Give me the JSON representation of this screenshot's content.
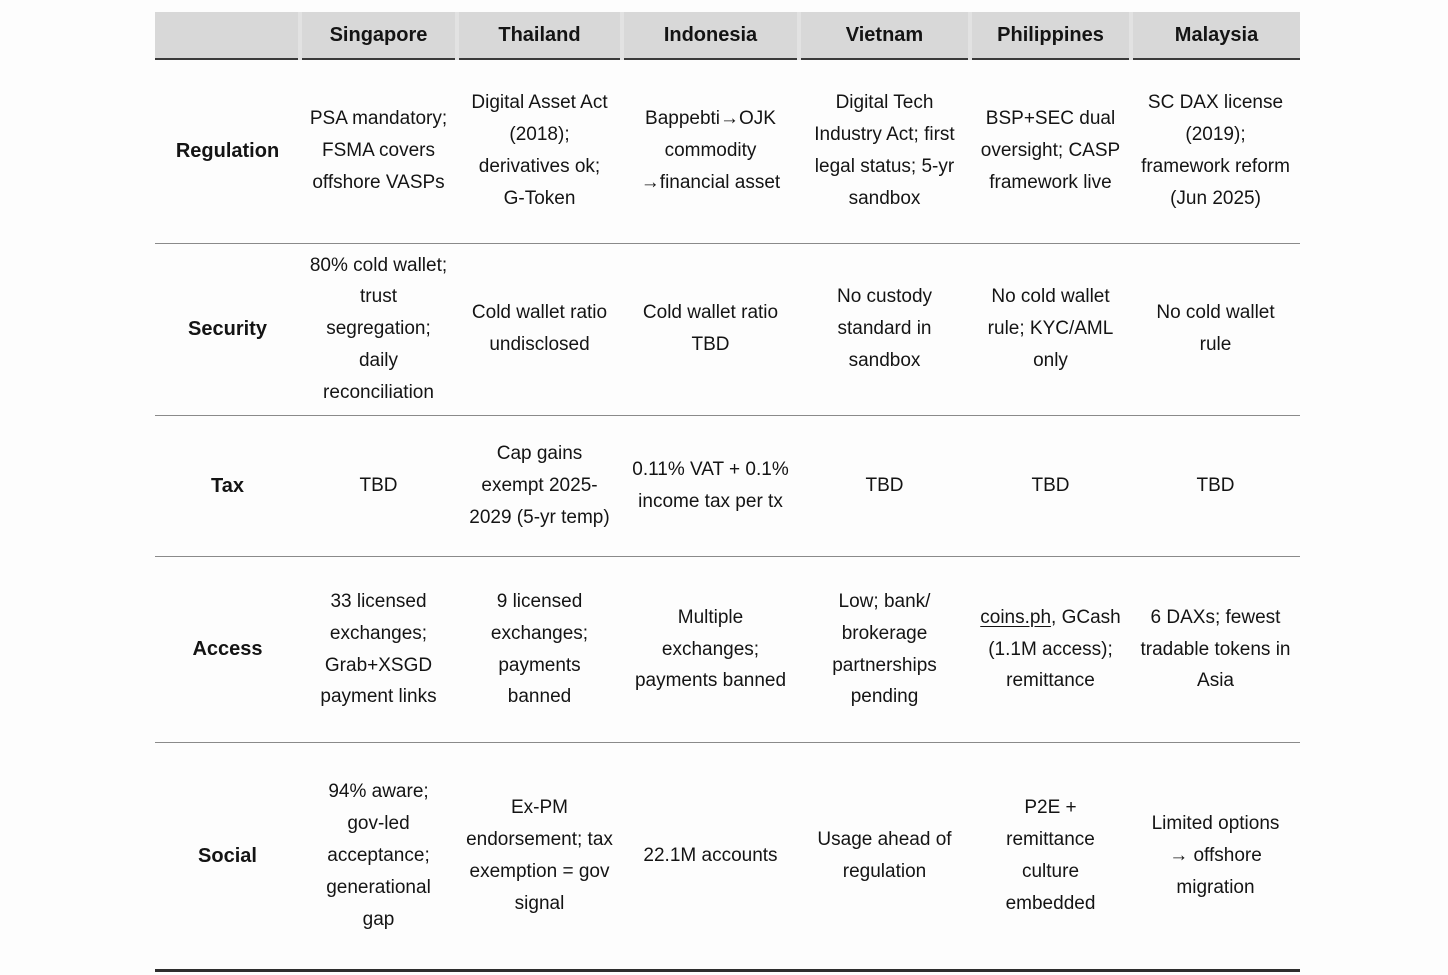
{
  "table": {
    "corner_label": "",
    "columns": [
      "Singapore",
      "Thailand",
      "Indonesia",
      "Vietnam",
      "Philippines",
      "Malaysia"
    ],
    "rows": [
      {
        "label": "Regulation",
        "cells": [
          "PSA mandatory; FSMA covers offshore VASPs",
          "Digital Asset Act (2018); derivatives ok; G-Token",
          "Bappebti→OJK commodity →financial asset",
          "Digital Tech Industry Act; first legal status; 5-yr sandbox",
          "BSP+SEC dual oversight; CASP framework live",
          "SC DAX license (2019); framework reform (Jun 2025)"
        ]
      },
      {
        "label": "Security",
        "cells": [
          "80% cold wallet; trust segregation; daily reconciliation",
          "Cold wallet ratio undisclosed",
          "Cold wallet ratio TBD",
          "No custody standard in sandbox",
          "No cold wallet rule; KYC/AML only",
          "No cold wallet rule"
        ]
      },
      {
        "label": "Tax",
        "cells": [
          "TBD",
          "Cap gains exempt 2025-2029 (5-yr temp)",
          "0.11% VAT + 0.1% income tax per tx",
          "TBD",
          "TBD",
          "TBD"
        ]
      },
      {
        "label": "Access",
        "cells": [
          "33 licensed exchanges; Grab+XSGD payment links",
          "9 licensed exchanges; payments banned",
          "Multiple exchanges; payments banned",
          "Low; bank/ brokerage partnerships pending",
          {
            "text": "coins.ph, GCash (1.1M access); remittance",
            "underline": "coins.ph",
            "link_name": "coins-ph-link"
          },
          "6 DAXs; fewest tradable tokens in Asia"
        ]
      },
      {
        "label": "Social",
        "cells": [
          "94% aware; gov-led acceptance; generational gap",
          "Ex-PM endorsement; tax exemption = gov signal",
          "22.1M accounts",
          "Usage ahead of regulation",
          "P2E + remittance culture embedded",
          "Limited options → offshore migration"
        ]
      }
    ]
  },
  "colors": {
    "header_bg": "#d8d8d8",
    "text": "#141414",
    "row_separator": "#8a8a8a",
    "header_rule": "#3a3a3a",
    "bottom_rule": "#2e2e2e"
  }
}
